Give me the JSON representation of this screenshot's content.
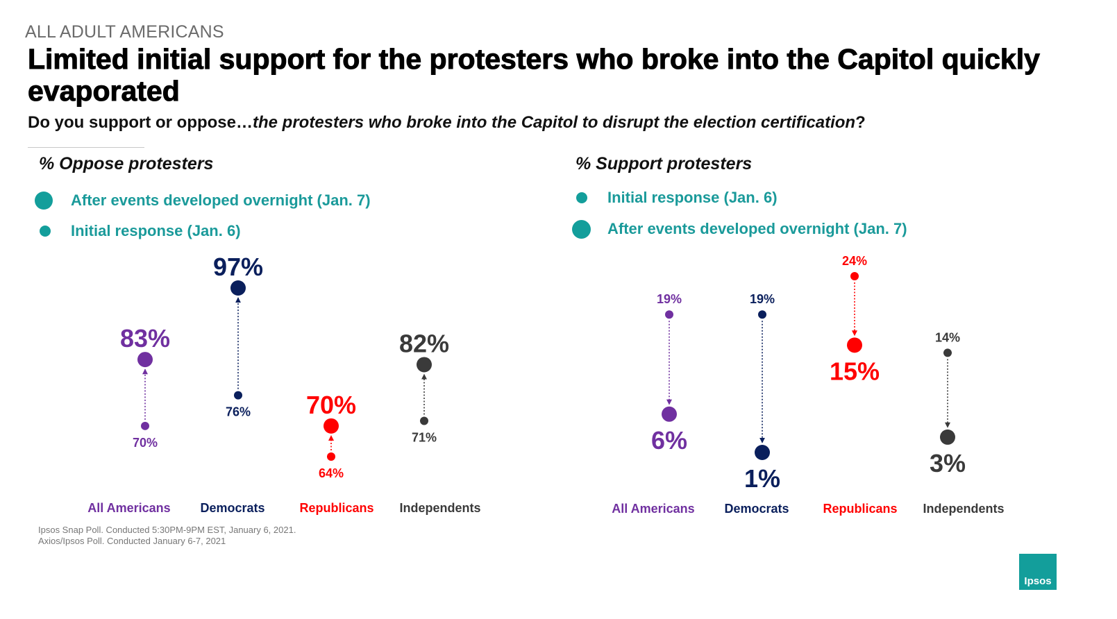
{
  "header": {
    "kicker": "ALL ADULT AMERICANS",
    "title": "Limited initial support for the protesters who broke into the Capitol quickly evaporated",
    "subtitle_prefix": "Do you support or oppose…",
    "subtitle_italic": "the protesters who broke into the Capitol to disrupt the election certification",
    "subtitle_suffix": "?"
  },
  "colors": {
    "legend_teal": "#139e9b",
    "legend_text": "#1a9a9a",
    "all_americans": "#7030a0",
    "democrats": "#0a1f5c",
    "republicans": "#ff0000",
    "independents": "#3a3a3a"
  },
  "footnotes": [
    "Ipsos Snap Poll. Conducted 5:30PM-9PM EST, January 6, 2021.",
    "Axios/Ipsos Poll. Conducted January 6-7, 2021"
  ],
  "logo": {
    "text": "Ipsos"
  },
  "chart_data": [
    {
      "type": "scatter",
      "subtype": "dumbbell",
      "title": "% Oppose protesters",
      "legend": [
        {
          "label": "After events developed overnight (Jan. 7)",
          "marker": "large"
        },
        {
          "label": "Initial response (Jan. 6)",
          "marker": "small"
        }
      ],
      "legend_placement": "top-left",
      "categories": [
        "All Americans",
        "Democrats",
        "Republicans",
        "Independents"
      ],
      "series": [
        {
          "name": "Initial response (Jan. 6)",
          "values": [
            70,
            76,
            64,
            71
          ]
        },
        {
          "name": "After events developed overnight (Jan. 7)",
          "values": [
            83,
            97,
            70,
            82
          ]
        }
      ],
      "unit": "%",
      "ylim": [
        60,
        100
      ],
      "grid": false
    },
    {
      "type": "scatter",
      "subtype": "dumbbell",
      "title": "% Support protesters",
      "legend": [
        {
          "label": "Initial response (Jan. 6)",
          "marker": "small"
        },
        {
          "label": "After events developed overnight (Jan. 7)",
          "marker": "large"
        }
      ],
      "legend_placement": "top-left",
      "categories": [
        "All Americans",
        "Democrats",
        "Republicans",
        "Independents"
      ],
      "series": [
        {
          "name": "Initial response (Jan. 6)",
          "values": [
            19,
            19,
            24,
            14
          ]
        },
        {
          "name": "After events developed overnight (Jan. 7)",
          "values": [
            6,
            1,
            15,
            3
          ]
        }
      ],
      "unit": "%",
      "ylim": [
        0,
        26
      ],
      "grid": false
    }
  ]
}
